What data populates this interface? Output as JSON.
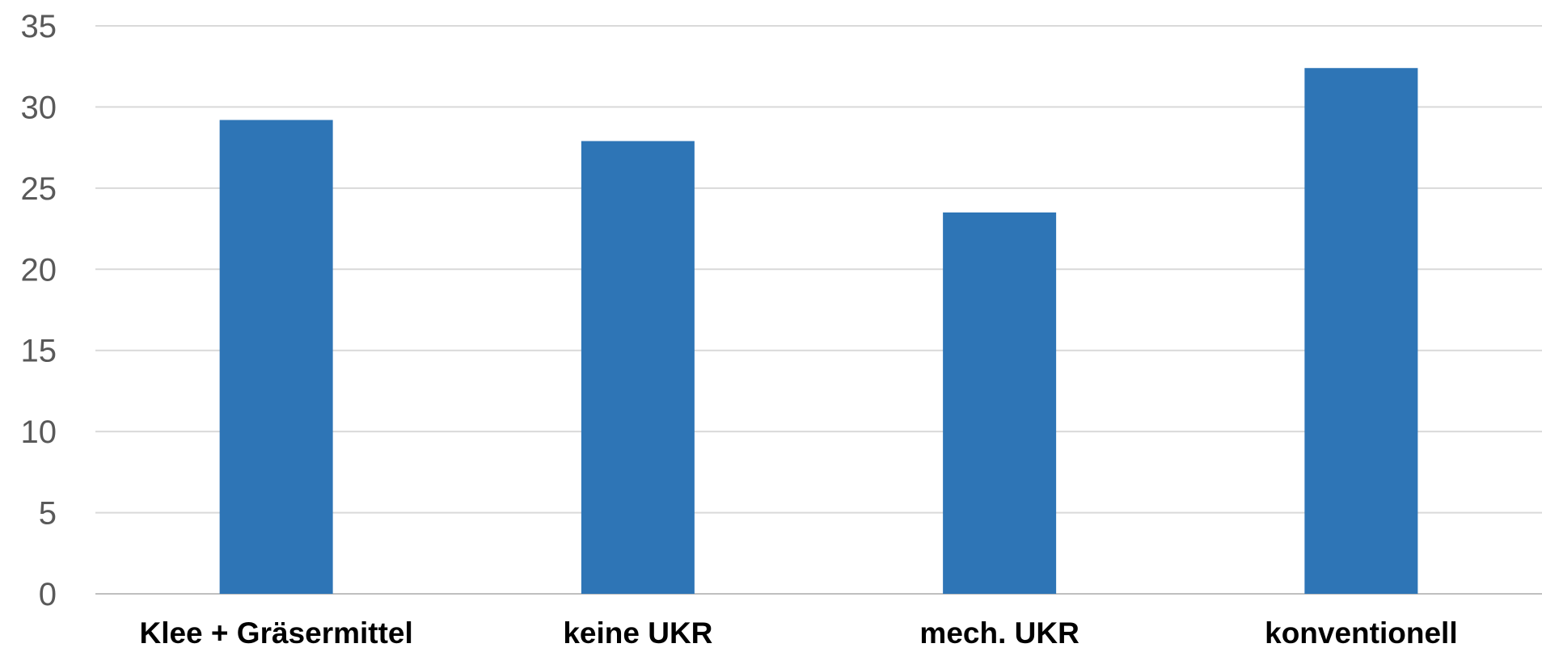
{
  "chart_data": {
    "type": "bar",
    "title": "",
    "xlabel": "",
    "ylabel": "",
    "categories": [
      "Klee + Gräsermittel",
      "keine UKR",
      "mech. UKR",
      "konventionell"
    ],
    "values": [
      29.2,
      27.9,
      23.5,
      32.4
    ],
    "ylim": [
      0,
      35
    ],
    "yticks": [
      0,
      5,
      10,
      15,
      20,
      25,
      30,
      35
    ],
    "grid": true,
    "legend": "none",
    "bar_color": "#2E75B6"
  }
}
